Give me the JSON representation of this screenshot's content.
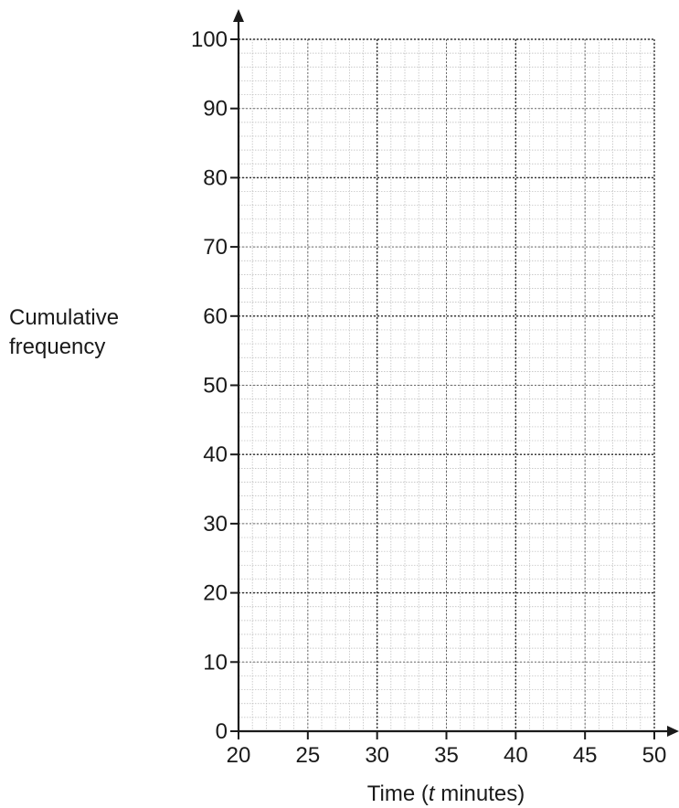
{
  "chart_data": {
    "type": "line",
    "xlabel_prefix": "Time (",
    "xlabel_var": "t",
    "xlabel_suffix": " minutes)",
    "ylabel_line1": "Cumulative",
    "ylabel_line2": "frequency",
    "xlim": [
      20,
      50
    ],
    "ylim": [
      0,
      100
    ],
    "x_ticks": [
      20,
      25,
      30,
      35,
      40,
      45,
      50
    ],
    "y_ticks": [
      0,
      10,
      20,
      30,
      40,
      50,
      60,
      70,
      80,
      90,
      100
    ],
    "grid": true,
    "series": []
  }
}
